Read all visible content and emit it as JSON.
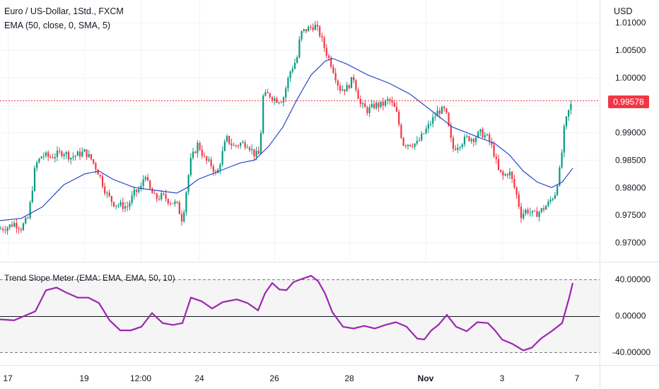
{
  "header": {
    "symbol_title": "Euro / US-Dollar, 1Std., FXCM",
    "indicator_label": "EMA (50, close, 0, SMA, 5)",
    "oscillator_label": "Trend Slope Meter (EMA: EMA, EMA, 50, 10)",
    "currency": "USD"
  },
  "colors": {
    "up": "#089981",
    "down": "#f23645",
    "ema": "#2a49c8",
    "slope": "#9c27b0",
    "last_price": "#f23645",
    "grid": "#f0f3fa",
    "text": "#131722"
  },
  "chart_data": [
    {
      "type": "candlestick",
      "title": "Euro / US-Dollar, 1Std., FXCM",
      "x_tick_labels": [
        "17",
        "19",
        "12:00",
        "24",
        "26",
        "28",
        "Nov",
        "3",
        "7"
      ],
      "y_tick_labels": [
        "0.97000",
        "0.97500",
        "0.98000",
        "0.98500",
        "0.99000",
        "0.99500",
        "1.00000",
        "1.00500",
        "1.01000"
      ],
      "ylim": [
        0.9675,
        1.0115
      ],
      "grid": true,
      "last_price": 0.99578,
      "last_price_label": "0.99578",
      "price_path": {
        "x": [
          0,
          10,
          20,
          30,
          40,
          50,
          60,
          70,
          80,
          90,
          100,
          110,
          120,
          130,
          140,
          150,
          160,
          170,
          180,
          190,
          200,
          205,
          210,
          220,
          230,
          240,
          250,
          258,
          265,
          270,
          280,
          290,
          300,
          306,
          312,
          320,
          330,
          340,
          350,
          360,
          367,
          372,
          380,
          390,
          400,
          410,
          420,
          425,
          430,
          437,
          445,
          452,
          460,
          470,
          480,
          490,
          500,
          510,
          520,
          530,
          540,
          550,
          560,
          570,
          580,
          590,
          600,
          610,
          620,
          630,
          640,
          650,
          660,
          670,
          680,
          690,
          697,
          705,
          712,
          720,
          730,
          737,
          745,
          755,
          765,
          775,
          785,
          793,
          797,
          803,
          810
        ],
        "y": [
          0.9725,
          0.9728,
          0.9735,
          0.9727,
          0.9745,
          0.984,
          0.986,
          0.9855,
          0.986,
          0.9865,
          0.9855,
          0.986,
          0.9865,
          0.985,
          0.9825,
          0.979,
          0.9772,
          0.9768,
          0.9765,
          0.979,
          0.98,
          0.983,
          0.98,
          0.978,
          0.9785,
          0.9775,
          0.977,
          0.974,
          0.981,
          0.985,
          0.988,
          0.985,
          0.984,
          0.982,
          0.985,
          0.989,
          0.9875,
          0.988,
          0.988,
          0.986,
          0.986,
          0.9965,
          0.997,
          0.996,
          0.996,
          1.001,
          1.0035,
          1.008,
          1.0085,
          1.009,
          1.0095,
          1.008,
          1.005,
          1.002,
          0.998,
          0.998,
          1.0,
          0.995,
          0.994,
          0.995,
          0.995,
          0.996,
          0.994,
          0.988,
          0.988,
          0.988,
          0.99,
          0.992,
          0.994,
          0.994,
          0.987,
          0.988,
          0.989,
          0.989,
          0.99,
          0.989,
          0.987,
          0.983,
          0.982,
          0.983,
          0.979,
          0.975,
          0.976,
          0.975,
          0.9758,
          0.977,
          0.979,
          0.984,
          0.99,
          0.9935,
          0.9958
        ]
      },
      "ema_path": {
        "name": "EMA",
        "x": [
          0,
          30,
          60,
          90,
          120,
          140,
          160,
          190,
          220,
          250,
          265,
          280,
          300,
          320,
          340,
          360,
          380,
          400,
          420,
          440,
          460,
          470,
          490,
          520,
          550,
          580,
          610,
          640,
          670,
          700,
          720,
          740,
          760,
          780,
          795,
          810
        ],
        "y": [
          0.974,
          0.9744,
          0.9765,
          0.9805,
          0.9825,
          0.983,
          0.9815,
          0.98,
          0.9795,
          0.979,
          0.98,
          0.9815,
          0.9825,
          0.9835,
          0.9845,
          0.985,
          0.9875,
          0.991,
          0.996,
          1.0005,
          1.003,
          1.0035,
          1.0025,
          1.0005,
          0.999,
          0.997,
          0.994,
          0.991,
          0.9895,
          0.988,
          0.986,
          0.983,
          0.981,
          0.98,
          0.981,
          0.9835
        ]
      }
    },
    {
      "type": "line",
      "title": "Trend Slope Meter (EMA: EMA, EMA, 50, 10)",
      "y_tick_labels": [
        "40.00000",
        "0.00000",
        "-40.00000"
      ],
      "ylim": [
        -50,
        50
      ],
      "reference_lines": [
        40,
        0,
        -40
      ],
      "series": [
        {
          "name": "Trend Slope Meter",
          "x": [
            0,
            20,
            35,
            50,
            65,
            80,
            95,
            110,
            125,
            140,
            155,
            170,
            185,
            200,
            215,
            230,
            245,
            258,
            270,
            285,
            300,
            315,
            335,
            350,
            365,
            375,
            385,
            395,
            405,
            415,
            425,
            440,
            450,
            460,
            470,
            485,
            500,
            515,
            530,
            545,
            560,
            575,
            590,
            600,
            610,
            620,
            632,
            645,
            660,
            675,
            690,
            700,
            710,
            725,
            740,
            752,
            765,
            780,
            795,
            805,
            810
          ],
          "y": [
            -4,
            -5,
            0,
            5,
            28,
            31,
            25,
            20,
            20,
            14,
            -5,
            -16,
            -16,
            -12,
            3,
            -8,
            -10,
            -8,
            20,
            16,
            8,
            15,
            18,
            14,
            6,
            25,
            36,
            29,
            28,
            37,
            40,
            44,
            38,
            24,
            4,
            -12,
            -14,
            -11,
            -14,
            -10,
            -7,
            -12,
            -25,
            -26,
            -16,
            -10,
            1,
            -12,
            -17,
            -7,
            -8,
            -16,
            -26,
            -31,
            -38,
            -35,
            -25,
            -17,
            -8,
            20,
            36
          ]
        }
      ]
    }
  ]
}
